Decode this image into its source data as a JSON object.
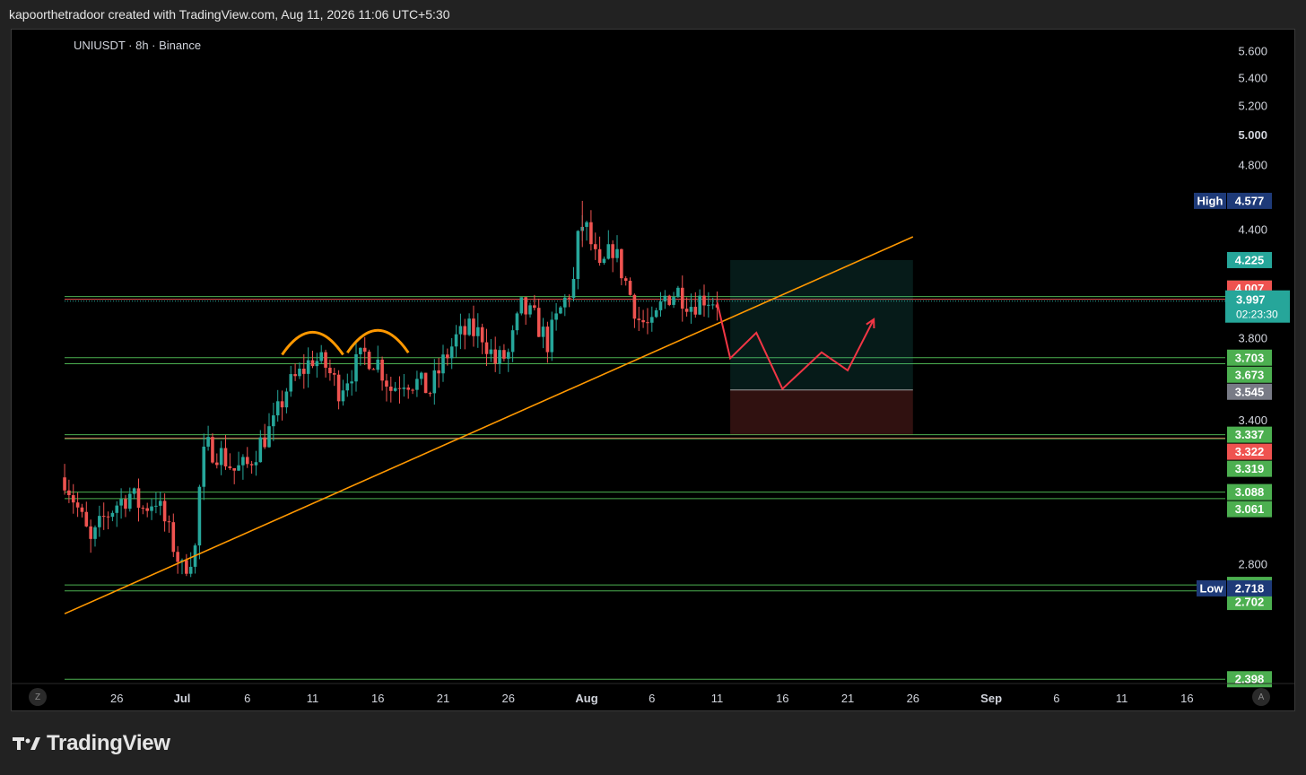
{
  "header": {
    "caption": "kapoorthetradoor created with TradingView.com, Aug 11, 2026 11:06 UTC+5:30"
  },
  "symbol": "UNIUSDT · 8h · Binance",
  "footer": {
    "brand": "TradingView"
  },
  "buttons": {
    "left": "Z",
    "right": "A"
  },
  "colors": {
    "up": "#26a69a",
    "down": "#ef5350",
    "trend": "#ff9800",
    "level": "#4caf50",
    "projection": "#f23645"
  },
  "chart_data": {
    "type": "candlestick",
    "pair": "UNIUSDT",
    "interval": "8h",
    "exchange": "Binance",
    "y_axis": {
      "scale": "log",
      "range": [
        2.39,
        5.72
      ],
      "ticks": [
        "5.600",
        "5.400",
        "5.200",
        "5.000",
        "4.800",
        "4.400",
        "3.800",
        "3.400",
        "2.800"
      ],
      "bold_tick": "5.000"
    },
    "x_axis": {
      "ticks": [
        {
          "label": "26",
          "day": -5
        },
        {
          "label": "Jul",
          "day": 0,
          "bold": true
        },
        {
          "label": "6",
          "day": 5
        },
        {
          "label": "11",
          "day": 10
        },
        {
          "label": "16",
          "day": 15
        },
        {
          "label": "21",
          "day": 20
        },
        {
          "label": "26",
          "day": 25
        },
        {
          "label": "Aug",
          "day": 31,
          "bold": true
        },
        {
          "label": "6",
          "day": 36
        },
        {
          "label": "11",
          "day": 41
        },
        {
          "label": "16",
          "day": 46
        },
        {
          "label": "21",
          "day": 51
        },
        {
          "label": "26",
          "day": 56
        },
        {
          "label": "Sep",
          "day": 62,
          "bold": true
        },
        {
          "label": "6",
          "day": 67
        },
        {
          "label": "11",
          "day": 72
        },
        {
          "label": "16",
          "day": 77
        }
      ]
    },
    "price_path": [
      [
        -9,
        3.15
      ],
      [
        -8,
        3.02
      ],
      [
        -7,
        2.88
      ],
      [
        -6,
        2.98
      ],
      [
        -5,
        3.04
      ],
      [
        -4,
        3.08
      ],
      [
        -3,
        3.02
      ],
      [
        -2,
        3.06
      ],
      [
        -1,
        2.92
      ],
      [
        0,
        2.78
      ],
      [
        1,
        2.86
      ],
      [
        1.5,
        3.22
      ],
      [
        2,
        3.28
      ],
      [
        3,
        3.25
      ],
      [
        4,
        3.18
      ],
      [
        5,
        3.2
      ],
      [
        6,
        3.3
      ],
      [
        7,
        3.38
      ],
      [
        8,
        3.55
      ],
      [
        9,
        3.62
      ],
      [
        10,
        3.7
      ],
      [
        11,
        3.66
      ],
      [
        12,
        3.55
      ],
      [
        13,
        3.64
      ],
      [
        14,
        3.72
      ],
      [
        15,
        3.68
      ],
      [
        16,
        3.55
      ],
      [
        17,
        3.6
      ],
      [
        18,
        3.58
      ],
      [
        19,
        3.54
      ],
      [
        20,
        3.68
      ],
      [
        21,
        3.8
      ],
      [
        22,
        3.84
      ],
      [
        23,
        3.82
      ],
      [
        24,
        3.68
      ],
      [
        25,
        3.72
      ],
      [
        26,
        3.96
      ],
      [
        27,
        3.9
      ],
      [
        28,
        3.78
      ],
      [
        29,
        3.95
      ],
      [
        30,
        4.1
      ],
      [
        30.5,
        4.45
      ],
      [
        31,
        4.4
      ],
      [
        32,
        4.15
      ],
      [
        33,
        4.3
      ],
      [
        34,
        4.1
      ],
      [
        35,
        3.9
      ],
      [
        36,
        3.85
      ],
      [
        37,
        4.02
      ],
      [
        38,
        4.05
      ],
      [
        39,
        3.98
      ],
      [
        40,
        4.02
      ],
      [
        41,
        3.997
      ]
    ],
    "high": {
      "label": "High",
      "value": "4.577"
    },
    "low": {
      "label": "Low",
      "value": "2.718"
    },
    "levels": [
      {
        "value": "4.022",
        "color": "#4caf50",
        "line": true
      },
      {
        "value": "4.007",
        "color": "#ef5350",
        "line": true
      },
      {
        "value": "3.703",
        "color": "#4caf50",
        "line": true
      },
      {
        "value": "3.673",
        "color": "#4caf50",
        "line": true
      },
      {
        "value": "3.337",
        "color": "#4caf50",
        "line": true
      },
      {
        "value": "3.322",
        "color": "#ef5350",
        "line": true
      },
      {
        "value": "3.319",
        "color": "#4caf50",
        "line": true
      },
      {
        "value": "3.088",
        "color": "#4caf50",
        "line": true
      },
      {
        "value": "3.061",
        "color": "#4caf50",
        "line": true
      },
      {
        "value": "2.724",
        "color": "#4caf50",
        "line": true
      },
      {
        "value": "2.702",
        "color": "#4caf50",
        "line": true
      },
      {
        "value": "2.398",
        "color": "#4caf50",
        "line": true
      }
    ],
    "current_price": {
      "value": "3.997",
      "countdown": "02:23:30",
      "color": "#26a69a"
    },
    "position": {
      "entry": "3.545",
      "target": "4.225",
      "stop": "3.337",
      "start_day": 42,
      "end_day": 56,
      "target_color": "#26a69a",
      "stop_color": "#ef5350"
    },
    "trendline": [
      [
        -9,
        2.62
      ],
      [
        56,
        4.36
      ]
    ],
    "arches": [
      [
        10,
        3.7
      ],
      [
        15,
        3.71
      ]
    ],
    "projection": [
      [
        41,
        3.99
      ],
      [
        42,
        3.7
      ],
      [
        44,
        3.83
      ],
      [
        46,
        3.55
      ],
      [
        49,
        3.73
      ],
      [
        51,
        3.64
      ],
      [
        53,
        3.9
      ]
    ]
  }
}
